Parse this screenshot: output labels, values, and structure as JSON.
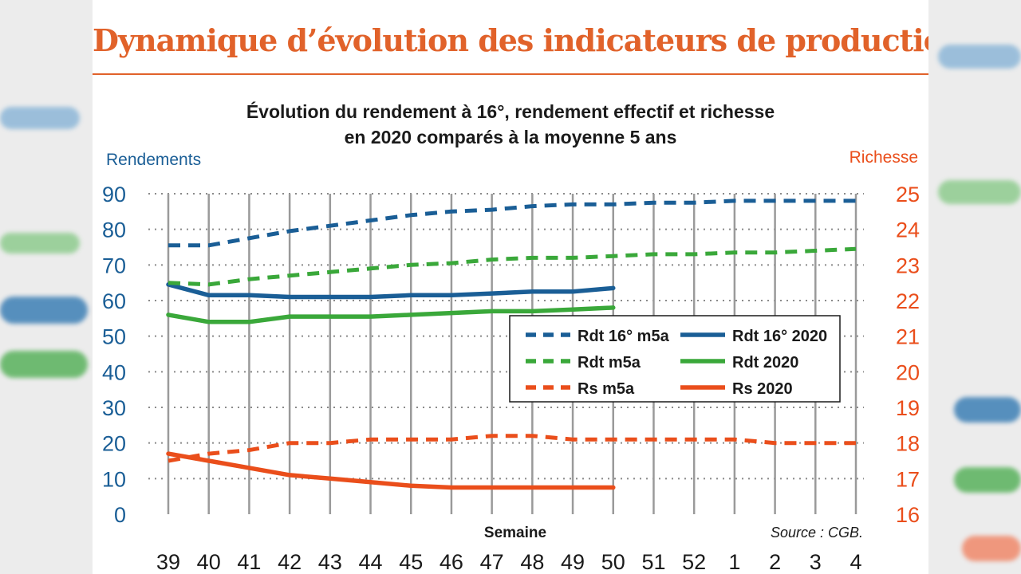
{
  "headline": "Dynamique d’évolution des indicateurs de production",
  "subtitle_line1": "Évolution du rendement à 16°, rendement effectif et richesse",
  "subtitle_line2": "en 2020 comparés à la moyenne 5 ans",
  "source": "Source : CGB.",
  "colors": {
    "blue": "#1a5e96",
    "green": "#3aa83a",
    "red": "#ea4e1b",
    "headline": "#e1622a"
  },
  "chart_data": {
    "type": "line",
    "xlabel": "Semaine",
    "categories": [
      "39",
      "40",
      "41",
      "42",
      "43",
      "44",
      "45",
      "46",
      "47",
      "48",
      "49",
      "50",
      "51",
      "52",
      "1",
      "2",
      "3",
      "4"
    ],
    "left_axis": {
      "label": "Rendements",
      "min": 0,
      "max": 90,
      "ticks": [
        0,
        10,
        20,
        30,
        40,
        50,
        60,
        70,
        80,
        90
      ]
    },
    "right_axis": {
      "label": "Richesse",
      "min": 16,
      "max": 25,
      "ticks": [
        16,
        17,
        18,
        19,
        20,
        21,
        22,
        23,
        24,
        25
      ]
    },
    "grid": true,
    "legend_position": "center-right",
    "series": [
      {
        "name": "Rdt 16° m5a",
        "axis": "left",
        "color": "blue",
        "dashed": true,
        "values": [
          75.5,
          75.5,
          77.5,
          79.5,
          81,
          82.5,
          84,
          85,
          85.5,
          86.5,
          87,
          87,
          87.5,
          87.5,
          88,
          88,
          88,
          88
        ]
      },
      {
        "name": "Rdt 16° 2020",
        "axis": "left",
        "color": "blue",
        "dashed": false,
        "values": [
          64.5,
          61.5,
          61.5,
          61,
          61,
          61,
          61.5,
          61.5,
          62,
          62.5,
          62.5,
          63.5,
          null,
          null,
          null,
          null,
          null,
          null
        ]
      },
      {
        "name": "Rdt m5a",
        "axis": "left",
        "color": "green",
        "dashed": true,
        "values": [
          65,
          64.5,
          66,
          67,
          68,
          69,
          70,
          70.5,
          71.5,
          72,
          72,
          72.5,
          73,
          73,
          73.5,
          73.5,
          74,
          74.5
        ]
      },
      {
        "name": "Rdt 2020",
        "axis": "left",
        "color": "green",
        "dashed": false,
        "values": [
          56,
          54,
          54,
          55.5,
          55.5,
          55.5,
          56,
          56.5,
          57,
          57,
          57.5,
          58,
          null,
          null,
          null,
          null,
          null,
          null
        ]
      },
      {
        "name": "Rs m5a",
        "axis": "right",
        "color": "red",
        "dashed": true,
        "values": [
          17.5,
          17.7,
          17.8,
          18,
          18,
          18.1,
          18.1,
          18.1,
          18.2,
          18.2,
          18.1,
          18.1,
          18.1,
          18.1,
          18.1,
          18,
          18,
          18
        ]
      },
      {
        "name": "Rs 2020",
        "axis": "right",
        "color": "red",
        "dashed": false,
        "values": [
          17.7,
          17.5,
          17.3,
          17.1,
          17,
          16.9,
          16.8,
          16.75,
          16.75,
          16.75,
          16.75,
          16.75,
          null,
          null,
          null,
          null,
          null,
          null
        ]
      }
    ],
    "legend": [
      {
        "label": "Rdt 16° m5a",
        "series": "Rdt 16° m5a"
      },
      {
        "label": "Rdt 16° 2020",
        "series": "Rdt 16° 2020"
      },
      {
        "label": "Rdt m5a",
        "series": "Rdt m5a"
      },
      {
        "label": "Rdt 2020",
        "series": "Rdt 2020"
      },
      {
        "label": "Rs m5a",
        "series": "Rs m5a"
      },
      {
        "label": "Rs 2020",
        "series": "Rs 2020"
      }
    ]
  }
}
